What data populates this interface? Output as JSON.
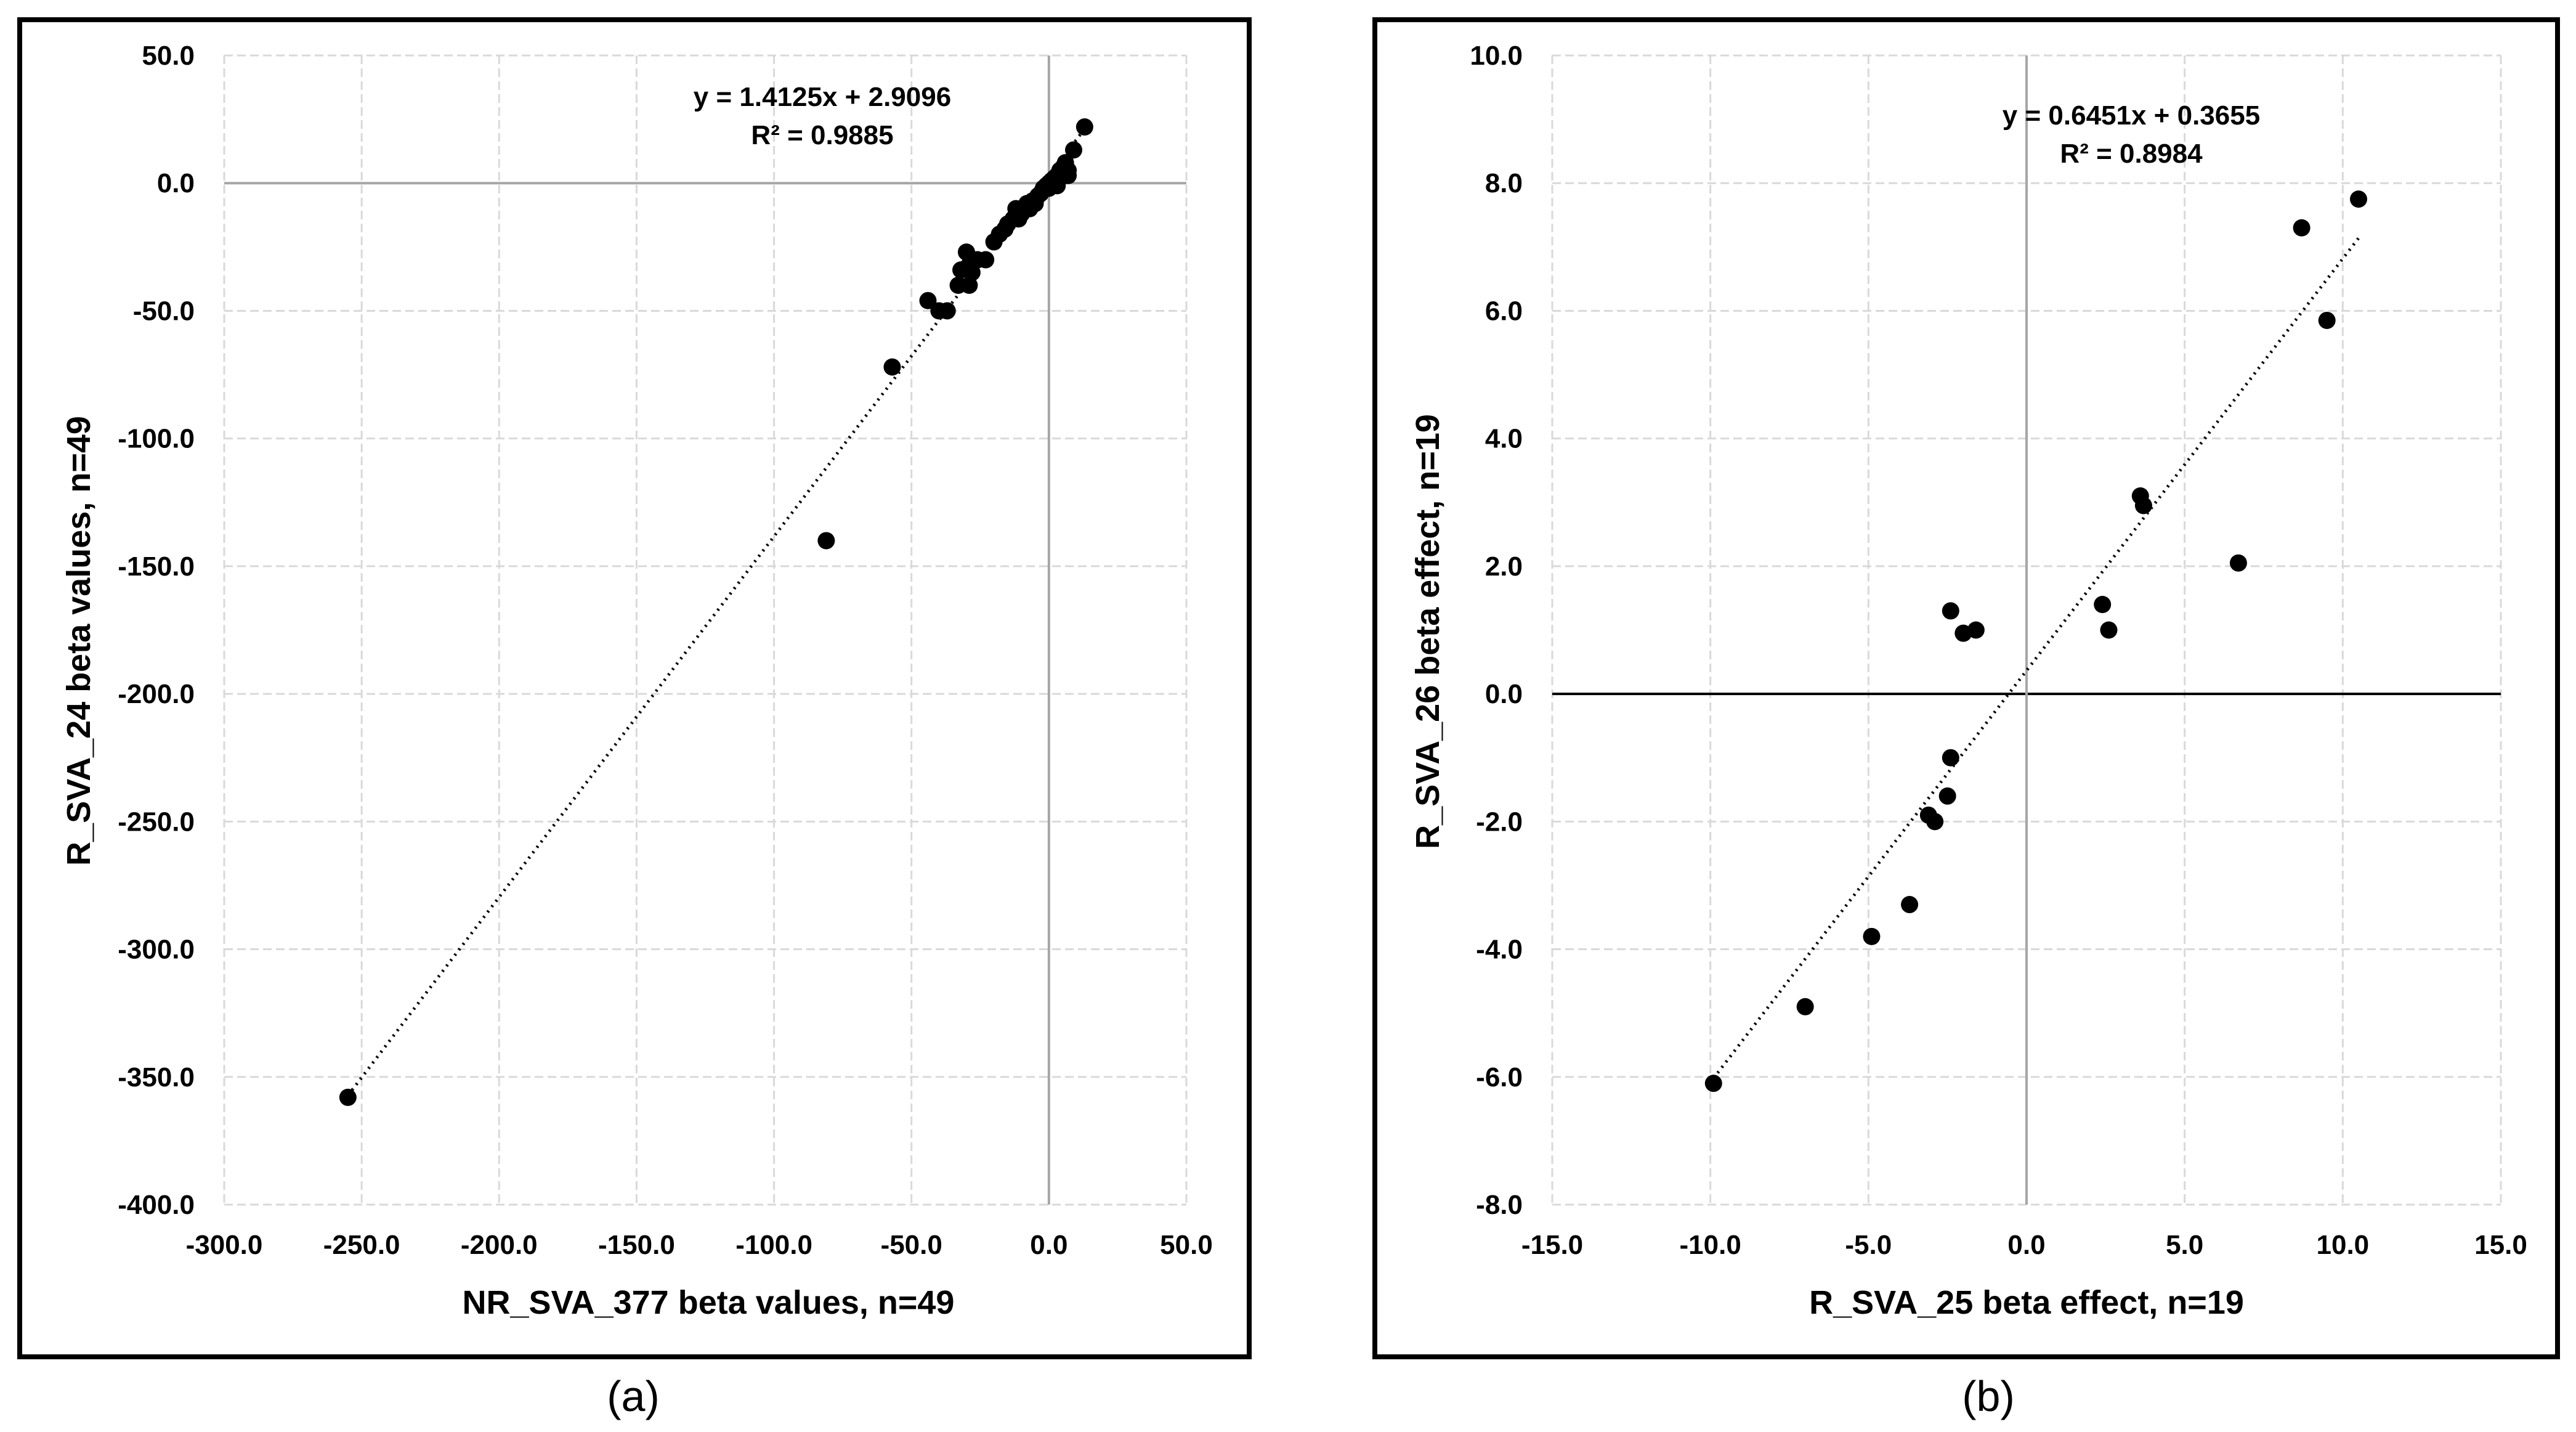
{
  "chart_data": [
    {
      "type": "scatter",
      "panel_label": "(a)",
      "xlabel": "NR_SVA_377 beta values, n=49",
      "ylabel": "R_SVA_24 beta values, n=49",
      "xlim": [
        -300,
        50
      ],
      "ylim": [
        -400,
        50
      ],
      "xticks": [
        -300,
        -250,
        -200,
        -150,
        -100,
        -50,
        0,
        50
      ],
      "yticks": [
        50,
        0,
        -50,
        -100,
        -150,
        -200,
        -250,
        -300,
        -350,
        -400
      ],
      "xtick_labels": [
        "-300.0",
        "-250.0",
        "-200.0",
        "-150.0",
        "-100.0",
        "-50.0",
        "0.0",
        "50.0"
      ],
      "ytick_labels": [
        "50.0",
        "0.0",
        "-50.0",
        "-100.0",
        "-150.0",
        "-200.0",
        "-250.0",
        "-300.0",
        "-350.0",
        "-400.0"
      ],
      "grid": true,
      "equation": "y = 1.4125x + 2.9096",
      "r_squared": "R² = 0.9885",
      "trendline": {
        "slope": 1.4125,
        "intercept": 2.9096,
        "x_range": [
          -255,
          12
        ]
      },
      "series": [
        {
          "points": [
            [
              -255,
              -358
            ],
            [
              -81,
              -140
            ],
            [
              -57,
              -72
            ],
            [
              -44,
              -46
            ],
            [
              -40,
              -50
            ],
            [
              -37,
              -50
            ],
            [
              -33,
              -40
            ],
            [
              -32,
              -34
            ],
            [
              -30,
              -27
            ],
            [
              -29,
              -32
            ],
            [
              -29,
              -40
            ],
            [
              -28,
              -35
            ],
            [
              -26,
              -30
            ],
            [
              -23,
              -30
            ],
            [
              -20,
              -23
            ],
            [
              -18,
              -20
            ],
            [
              -16,
              -18
            ],
            [
              -15,
              -16
            ],
            [
              -13,
              -14
            ],
            [
              -12,
              -10
            ],
            [
              -11,
              -14
            ],
            [
              -10,
              -12
            ],
            [
              -9,
              -10
            ],
            [
              -8,
              -8
            ],
            [
              -7,
              -10
            ],
            [
              -6,
              -7
            ],
            [
              -5,
              -8
            ],
            [
              -4,
              -5
            ],
            [
              -3,
              -4
            ],
            [
              -2,
              -2
            ],
            [
              -1,
              -1
            ],
            [
              0,
              0
            ],
            [
              0,
              -2
            ],
            [
              1,
              1
            ],
            [
              1,
              -1
            ],
            [
              2,
              2
            ],
            [
              2,
              0
            ],
            [
              3,
              3
            ],
            [
              3,
              -1
            ],
            [
              4,
              5
            ],
            [
              4,
              2
            ],
            [
              5,
              6
            ],
            [
              5,
              3
            ],
            [
              6,
              8
            ],
            [
              6,
              4
            ],
            [
              7,
              5
            ],
            [
              7,
              3
            ],
            [
              9,
              13
            ],
            [
              13,
              22
            ]
          ]
        }
      ]
    },
    {
      "type": "scatter",
      "panel_label": "(b)",
      "xlabel": "R_SVA_25 beta effect, n=19",
      "ylabel": "R_SVA_26 beta effect, n=19",
      "xlim": [
        -15,
        15
      ],
      "ylim": [
        -8,
        10
      ],
      "xticks": [
        -15,
        -10,
        -5,
        0,
        5,
        10,
        15
      ],
      "yticks": [
        10,
        8,
        6,
        4,
        2,
        0,
        -2,
        -4,
        -6,
        -8
      ],
      "xtick_labels": [
        "-15.0",
        "-10.0",
        "-5.0",
        "0.0",
        "5.0",
        "10.0",
        "15.0"
      ],
      "ytick_labels": [
        "10.0",
        "8.0",
        "6.0",
        "4.0",
        "2.0",
        "0.0",
        "-2.0",
        "-4.0",
        "-6.0",
        "-8.0"
      ],
      "grid": true,
      "equation": "y = 0.6451x + 0.3655",
      "r_squared": "R² = 0.8984",
      "trendline": {
        "slope": 0.6451,
        "intercept": 0.3655,
        "x_range": [
          -9.9,
          10.5
        ]
      },
      "series": [
        {
          "points": [
            [
              -9.9,
              -6.1
            ],
            [
              -7.0,
              -4.9
            ],
            [
              -4.9,
              -3.8
            ],
            [
              -3.7,
              -3.3
            ],
            [
              -3.1,
              -1.9
            ],
            [
              -2.9,
              -2.0
            ],
            [
              -2.5,
              -1.6
            ],
            [
              -2.4,
              -1.0
            ],
            [
              -2.4,
              1.3
            ],
            [
              -2.0,
              0.95
            ],
            [
              -1.6,
              1.0
            ],
            [
              2.4,
              1.4
            ],
            [
              2.6,
              1.0
            ],
            [
              3.6,
              3.1
            ],
            [
              3.7,
              2.95
            ],
            [
              6.7,
              2.05
            ],
            [
              8.7,
              7.3
            ],
            [
              9.5,
              5.85
            ],
            [
              10.5,
              7.75
            ]
          ]
        }
      ]
    }
  ]
}
